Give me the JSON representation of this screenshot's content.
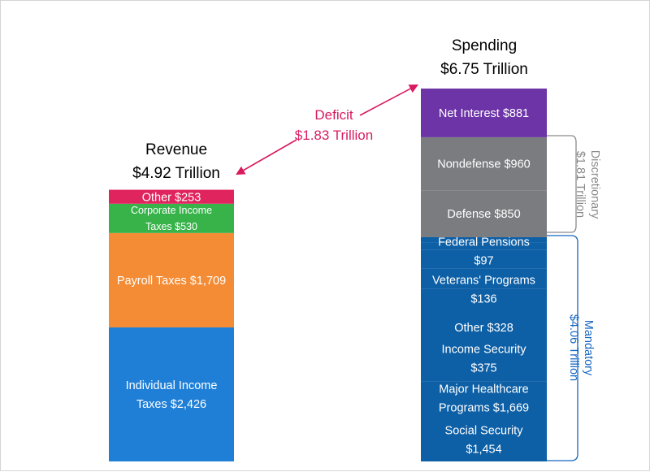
{
  "chart_data": {
    "type": "bar",
    "units": "billions of dollars",
    "revenue": {
      "title": "Revenue",
      "total": "$4.92 Trillion",
      "segments": [
        {
          "label_lines": [
            "Individual Income",
            "Taxes $2,426"
          ],
          "value": 2426,
          "color": "#1f7fd6"
        },
        {
          "label_lines": [
            "Payroll Taxes $1,709"
          ],
          "value": 1709,
          "color": "#f48c35"
        },
        {
          "label_lines": [
            "Corporate Income",
            "Taxes $530"
          ],
          "value": 530,
          "color": "#37b34a"
        },
        {
          "label_lines": [
            "Other $253"
          ],
          "value": 253,
          "color": "#e0245e"
        }
      ]
    },
    "spending": {
      "title": "Spending",
      "total": "$6.75 Trillion",
      "segments": [
        {
          "label_lines": [
            "Social Security",
            "$1,454"
          ],
          "value": 1454,
          "color": "#0d5fa6"
        },
        {
          "label_lines": [
            "Major Healthcare",
            "Programs $1,669"
          ],
          "value": 1669,
          "color": "#0d5fa6"
        },
        {
          "label_lines": [
            "Income Security",
            "$375"
          ],
          "value": 375,
          "color": "#0d5fa6"
        },
        {
          "label_lines": [
            "Other $328"
          ],
          "value": 328,
          "color": "#0d5fa6"
        },
        {
          "label_lines": [
            "Veterans' Programs",
            "$136"
          ],
          "value": 136,
          "color": "#0d5fa6"
        },
        {
          "label_lines": [
            "Federal Pensions",
            "$97"
          ],
          "value": 97,
          "color": "#0d5fa6"
        },
        {
          "label_lines": [
            "Defense $850"
          ],
          "value": 850,
          "color": "#7b7c80"
        },
        {
          "label_lines": [
            "Nondefense $960"
          ],
          "value": 960,
          "color": "#7b7c80"
        },
        {
          "label_lines": [
            "Net Interest $881"
          ],
          "value": 881,
          "color": "#6d34a8"
        }
      ]
    },
    "deficit": {
      "label": "Deficit",
      "value": "$1.83 Trillion",
      "color": "#d81b60"
    },
    "brackets": [
      {
        "title": "Discretionary",
        "value": "$1.81 Trillion",
        "color": "#8a8a8a"
      },
      {
        "title": "Mandatory",
        "value": "$4.06 Trillion",
        "color": "#1565c0"
      }
    ]
  }
}
